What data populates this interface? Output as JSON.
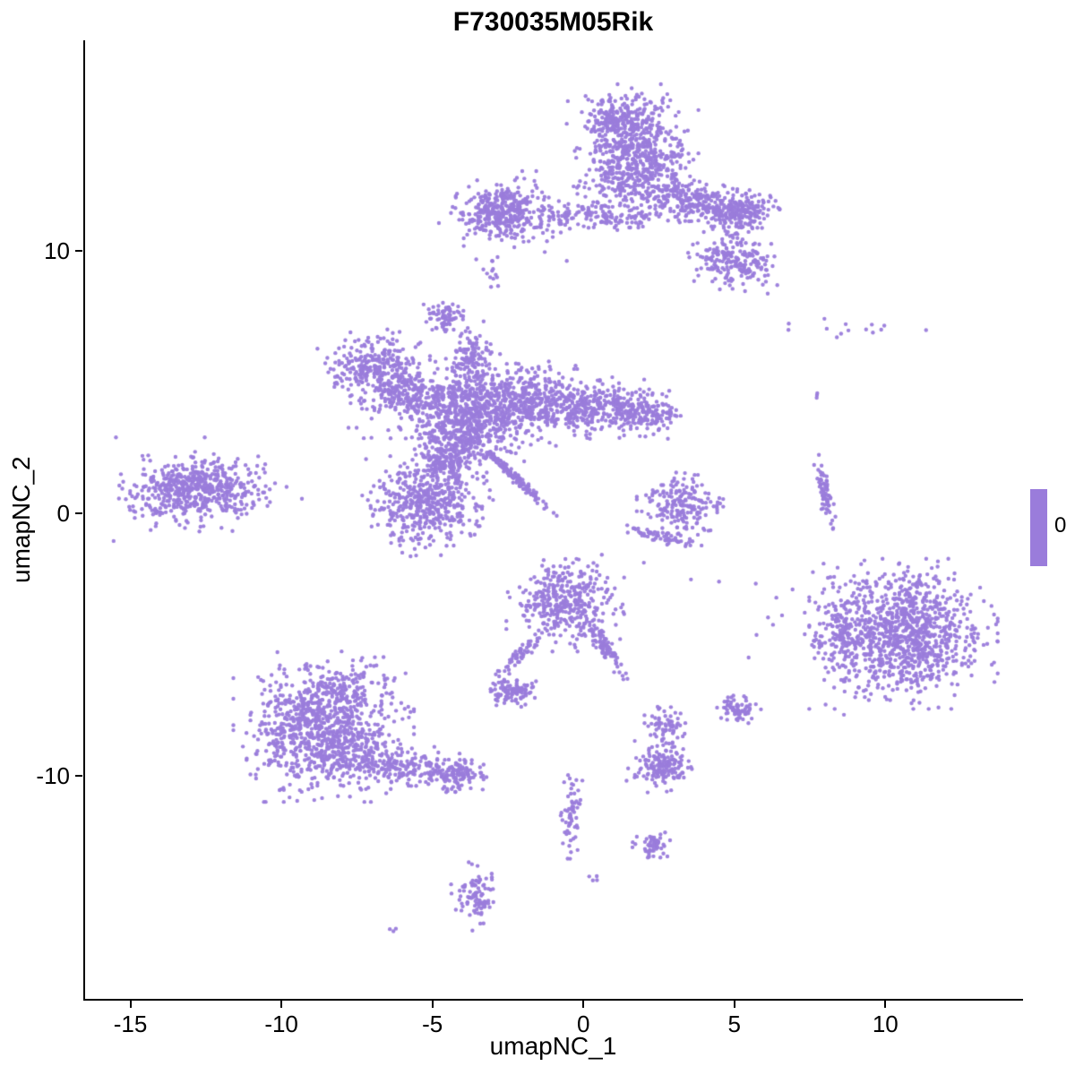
{
  "title": "F730035M05Rik",
  "legend": {
    "value_label": "0",
    "bar_color": "#9A7CDB"
  },
  "chart_data": {
    "type": "scatter",
    "title": "F730035M05Rik",
    "xlabel": "umapNC_1",
    "ylabel": "umapNC_2",
    "xlim": [
      -16.5,
      14.5
    ],
    "ylim": [
      -18.5,
      18.0
    ],
    "x_ticks": [
      -15,
      -10,
      -5,
      0,
      5,
      10
    ],
    "y_ticks": [
      10,
      0,
      -10
    ],
    "grid": false,
    "legend_position": "right",
    "point_color": "#9A7CDB",
    "point_radius": 2.2,
    "seed": 42,
    "clusters": [
      {
        "name": "top-main-core",
        "cx": 1.6,
        "cy": 13.6,
        "sx": 0.85,
        "sy": 1.05,
        "rot": 0,
        "n": 650
      },
      {
        "name": "top-main-peak",
        "cx": 1.2,
        "cy": 15.0,
        "sx": 0.55,
        "sy": 0.4,
        "rot": 0,
        "n": 140
      },
      {
        "name": "top-right-arm",
        "cx": 3.6,
        "cy": 11.9,
        "sx": 0.95,
        "sy": 0.33,
        "rot": -22,
        "n": 260
      },
      {
        "name": "top-right-blob",
        "cx": 5.2,
        "cy": 11.5,
        "sx": 0.5,
        "sy": 0.38,
        "rot": 0,
        "n": 190
      },
      {
        "name": "upper-right-cluster",
        "cx": 5.0,
        "cy": 9.6,
        "sx": 0.6,
        "sy": 0.45,
        "rot": -10,
        "n": 210
      },
      {
        "name": "top-bridge",
        "cx": 1.2,
        "cy": 11.35,
        "sx": 1.3,
        "sy": 0.25,
        "rot": 0,
        "n": 90
      },
      {
        "name": "upper-left-oval",
        "cx": -2.7,
        "cy": 11.5,
        "sx": 0.6,
        "sy": 0.45,
        "rot": 0,
        "n": 300
      },
      {
        "name": "upper-left-halo",
        "cx": -2.4,
        "cy": 11.2,
        "sx": 1.1,
        "sy": 0.7,
        "rot": 0,
        "n": 90
      },
      {
        "name": "upper-band",
        "cx": -0.6,
        "cy": 11.3,
        "sx": 0.9,
        "sy": 0.18,
        "rot": 0,
        "n": 60
      },
      {
        "name": "upper-left-dots",
        "cx": -3.0,
        "cy": 9.1,
        "sx": 0.12,
        "sy": 0.35,
        "rot": 0,
        "n": 12
      },
      {
        "name": "small-blob-west",
        "cx": -4.6,
        "cy": 7.5,
        "sx": 0.32,
        "sy": 0.26,
        "rot": 0,
        "n": 70
      },
      {
        "name": "midleft-cluster",
        "cx": -6.9,
        "cy": 5.5,
        "sx": 0.75,
        "sy": 0.6,
        "rot": -15,
        "n": 280
      },
      {
        "name": "midleft-halo",
        "cx": -6.5,
        "cy": 4.9,
        "sx": 1.0,
        "sy": 0.85,
        "rot": 0,
        "n": 90
      },
      {
        "name": "central-core",
        "cx": -3.9,
        "cy": 3.6,
        "sx": 0.85,
        "sy": 0.8,
        "rot": 0,
        "n": 700
      },
      {
        "name": "central-up-arm",
        "cx": -3.7,
        "cy": 5.7,
        "sx": 0.35,
        "sy": 0.7,
        "rot": 0,
        "n": 130
      },
      {
        "name": "central-right",
        "cx": -1.8,
        "cy": 4.3,
        "sx": 0.9,
        "sy": 0.6,
        "rot": -10,
        "n": 420
      },
      {
        "name": "central-east-arm",
        "cx": 0.4,
        "cy": 4.0,
        "sx": 1.0,
        "sy": 0.45,
        "rot": 0,
        "n": 300
      },
      {
        "name": "central-east-tip",
        "cx": 2.0,
        "cy": 3.8,
        "sx": 0.6,
        "sy": 0.35,
        "rot": 0,
        "n": 150
      },
      {
        "name": "central-west-spur",
        "cx": -5.6,
        "cy": 4.5,
        "sx": 0.5,
        "sy": 0.38,
        "rot": 0,
        "n": 120
      },
      {
        "name": "central-lower-blob",
        "cx": -5.2,
        "cy": 0.3,
        "sx": 0.85,
        "sy": 0.75,
        "rot": 0,
        "n": 460
      },
      {
        "name": "central-neck",
        "cx": -4.5,
        "cy": 2.0,
        "sx": 0.5,
        "sy": 0.6,
        "rot": 0,
        "n": 200
      },
      {
        "name": "diagonal-streak",
        "cx": -2.4,
        "cy": 1.5,
        "sx": 0.85,
        "sy": 0.07,
        "rot": -47,
        "n": 150
      },
      {
        "name": "west-cluster",
        "cx": -12.8,
        "cy": 0.9,
        "sx": 1.0,
        "sy": 0.55,
        "rot": 5,
        "n": 470
      },
      {
        "name": "west-halo",
        "cx": -12.7,
        "cy": 0.8,
        "sx": 1.3,
        "sy": 0.8,
        "rot": 0,
        "n": 110
      },
      {
        "name": "east-small-cluster",
        "cx": 3.2,
        "cy": 0.3,
        "sx": 0.55,
        "sy": 0.5,
        "rot": 0,
        "n": 190
      },
      {
        "name": "east-small-arc",
        "cx": 2.6,
        "cy": -0.9,
        "sx": 0.6,
        "sy": 0.1,
        "rot": -15,
        "n": 60
      },
      {
        "name": "east-streak",
        "cx": 8.0,
        "cy": 0.8,
        "sx": 0.1,
        "sy": 0.55,
        "rot": 8,
        "n": 70
      },
      {
        "name": "northeast-dots",
        "cx": 8.8,
        "cy": 7.0,
        "sx": 1.1,
        "sy": 0.2,
        "rot": 0,
        "n": 14
      },
      {
        "name": "northeast-lone",
        "cx": 7.7,
        "cy": 4.6,
        "sx": 0.1,
        "sy": 0.1,
        "rot": 0,
        "n": 3
      },
      {
        "name": "east-main-cluster",
        "cx": 10.6,
        "cy": -4.6,
        "sx": 1.2,
        "sy": 1.1,
        "rot": 0,
        "n": 950
      },
      {
        "name": "east-main-arm",
        "cx": 8.5,
        "cy": -4.5,
        "sx": 0.45,
        "sy": 0.85,
        "rot": 0,
        "n": 130
      },
      {
        "name": "east-main-halo",
        "cx": 10.0,
        "cy": -4.0,
        "sx": 1.8,
        "sy": 1.5,
        "rot": 0,
        "n": 90
      },
      {
        "name": "mid-sparse-dots",
        "cx": 3.0,
        "cy": -2.6,
        "sx": 1.2,
        "sy": 0.7,
        "rot": 0,
        "n": 6
      },
      {
        "name": "south-central-cluster",
        "cx": -0.6,
        "cy": -3.4,
        "sx": 0.75,
        "sy": 0.72,
        "rot": 0,
        "n": 370
      },
      {
        "name": "south-central-tail",
        "cx": 0.7,
        "cy": -5.1,
        "sx": 0.55,
        "sy": 0.12,
        "rot": -58,
        "n": 90
      },
      {
        "name": "small-streak",
        "cx": -2.1,
        "cy": -5.4,
        "sx": 0.5,
        "sy": 0.1,
        "rot": 48,
        "n": 55
      },
      {
        "name": "small-dense-blob",
        "cx": -2.4,
        "cy": -6.8,
        "sx": 0.32,
        "sy": 0.24,
        "rot": 0,
        "n": 110
      },
      {
        "name": "southwest-core",
        "cx": -8.6,
        "cy": -8.4,
        "sx": 1.15,
        "sy": 1.0,
        "rot": 0,
        "n": 850
      },
      {
        "name": "southwest-upper",
        "cx": -8.3,
        "cy": -6.7,
        "sx": 0.9,
        "sy": 0.55,
        "rot": 0,
        "n": 160
      },
      {
        "name": "southwest-arm",
        "cx": -6.3,
        "cy": -9.6,
        "sx": 1.0,
        "sy": 0.35,
        "rot": -8,
        "n": 210
      },
      {
        "name": "southwest-arm-tip",
        "cx": -4.3,
        "cy": -9.9,
        "sx": 0.42,
        "sy": 0.3,
        "rot": 0,
        "n": 120
      },
      {
        "name": "south-dot-blob-a",
        "cx": 2.7,
        "cy": -8.0,
        "sx": 0.26,
        "sy": 0.38,
        "rot": 0,
        "n": 65
      },
      {
        "name": "south-dot-blob-b",
        "cx": 5.1,
        "cy": -7.5,
        "sx": 0.3,
        "sy": 0.26,
        "rot": 0,
        "n": 70
      },
      {
        "name": "south-cluster",
        "cx": 2.6,
        "cy": -9.6,
        "sx": 0.45,
        "sy": 0.4,
        "rot": 0,
        "n": 160
      },
      {
        "name": "south-streak",
        "cx": -0.4,
        "cy": -11.5,
        "sx": 0.16,
        "sy": 0.85,
        "rot": 0,
        "n": 60
      },
      {
        "name": "south-small-blob",
        "cx": 2.3,
        "cy": -12.6,
        "sx": 0.27,
        "sy": 0.2,
        "rot": 0,
        "n": 55
      },
      {
        "name": "bottom-cluster",
        "cx": -3.6,
        "cy": -14.6,
        "sx": 0.3,
        "sy": 0.5,
        "rot": 0,
        "n": 95
      },
      {
        "name": "bottom-lone-dot",
        "cx": -6.3,
        "cy": -15.9,
        "sx": 0.08,
        "sy": 0.06,
        "rot": 0,
        "n": 3
      },
      {
        "name": "bottom-pair",
        "cx": 0.3,
        "cy": -13.9,
        "sx": 0.1,
        "sy": 0.08,
        "rot": 0,
        "n": 4
      }
    ]
  }
}
